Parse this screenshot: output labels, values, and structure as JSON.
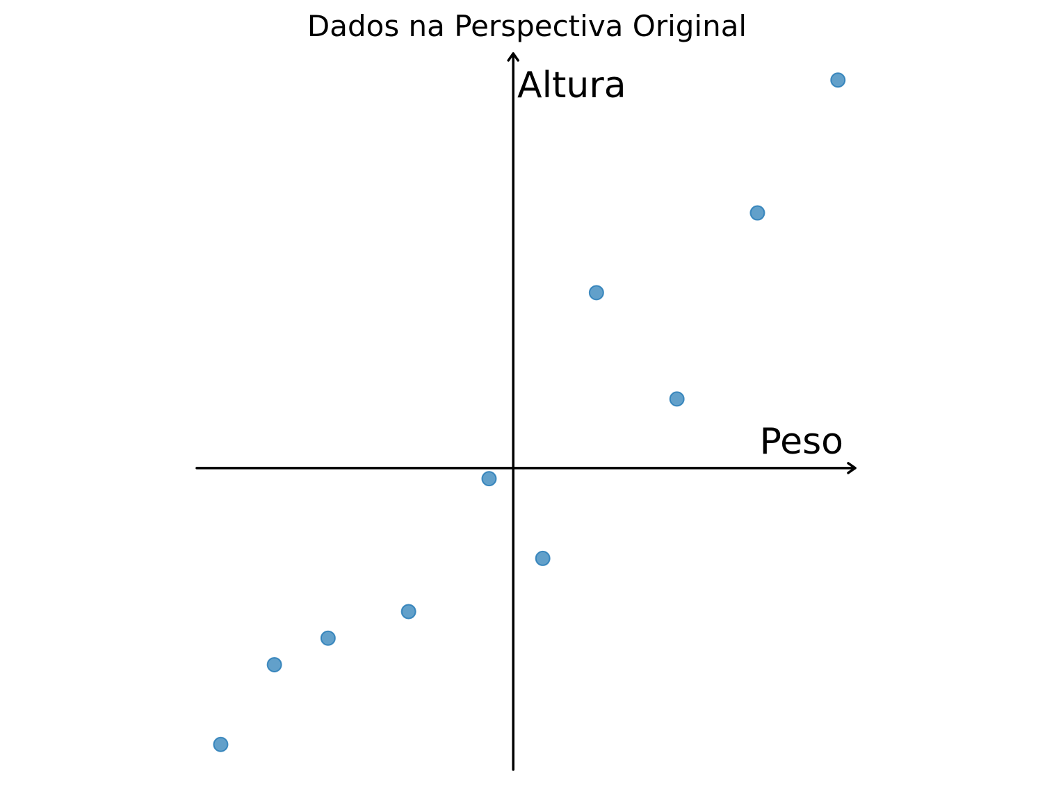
{
  "chart_data": {
    "type": "scatter",
    "title": "Dados na Perspectiva Original",
    "xlabel": "Peso",
    "ylabel": "Altura",
    "xlim": [
      -6.0,
      6.5
    ],
    "ylim": [
      -5.7,
      7.8
    ],
    "grid": false,
    "axes_style": "centered-arrows",
    "marker_color": "#1f77b4",
    "points": [
      {
        "x": -5.45,
        "y": -5.2
      },
      {
        "x": -4.45,
        "y": -3.7
      },
      {
        "x": -3.45,
        "y": -3.2
      },
      {
        "x": -1.95,
        "y": -2.7
      },
      {
        "x": -0.45,
        "y": -0.2
      },
      {
        "x": 0.55,
        "y": -1.7
      },
      {
        "x": 1.55,
        "y": 3.3
      },
      {
        "x": 3.05,
        "y": 1.3
      },
      {
        "x": 4.55,
        "y": 4.8
      },
      {
        "x": 6.05,
        "y": 7.3
      }
    ]
  }
}
